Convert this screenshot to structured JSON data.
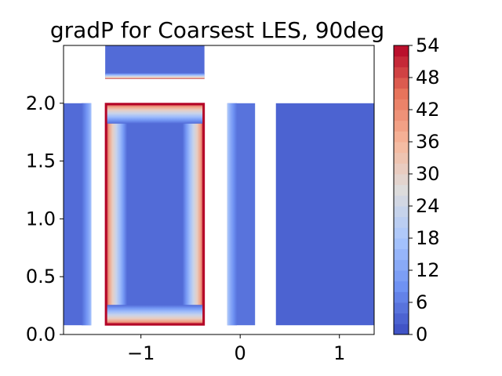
{
  "chart_data": {
    "type": "heatmap",
    "title": "gradP for Coarsest LES, 90deg",
    "xlabel": "",
    "ylabel": "",
    "xlim": [
      -1.78,
      1.35
    ],
    "ylim": [
      0.0,
      2.5
    ],
    "x_ticks": [
      -1,
      0,
      1
    ],
    "x_tick_labels": [
      "−1",
      "0",
      "1"
    ],
    "y_ticks": [
      0.0,
      0.5,
      1.0,
      1.5,
      2.0
    ],
    "y_tick_labels": [
      "0.0",
      "0.5",
      "1.0",
      "1.5",
      "2.0"
    ],
    "colorbar": {
      "min": 0,
      "max": 54,
      "levels": 27,
      "ticks": [
        0,
        6,
        12,
        18,
        24,
        30,
        36,
        42,
        48,
        54
      ],
      "tick_labels": [
        "0",
        "6",
        "12",
        "18",
        "24",
        "30",
        "36",
        "42",
        "48",
        "54"
      ],
      "colormap": "coolwarm"
    },
    "regions": [
      {
        "id": "left-strip",
        "x": [
          -1.78,
          -1.5
        ],
        "y": [
          0.08,
          2.0
        ],
        "interior": 4,
        "edge": 18,
        "hot_edge": "right"
      },
      {
        "id": "center-left-block",
        "x": [
          -1.36,
          -0.36
        ],
        "y": [
          0.08,
          2.0
        ],
        "interior": 4,
        "edge": 54,
        "hot_edge": "all"
      },
      {
        "id": "top-block",
        "x": [
          -1.36,
          -0.36
        ],
        "y": [
          2.21,
          2.5
        ],
        "interior": 4,
        "edge": 48,
        "hot_edge": "bottom"
      },
      {
        "id": "middle-strip",
        "x": [
          -0.13,
          0.15
        ],
        "y": [
          0.08,
          2.0
        ],
        "interior": 5,
        "edge": 20,
        "hot_edge": "left"
      },
      {
        "id": "right-block",
        "x": [
          0.36,
          1.35
        ],
        "y": [
          0.08,
          2.0
        ],
        "interior": 3,
        "edge": 4,
        "hot_edge": "none"
      }
    ]
  },
  "colors": {
    "coolwarm_stops": [
      "#3b4cc0",
      "#6f92f3",
      "#aac7fd",
      "#dddcdc",
      "#f7b89c",
      "#e7745b",
      "#b40426"
    ],
    "background": "#ffffff",
    "axis": "#000000"
  }
}
